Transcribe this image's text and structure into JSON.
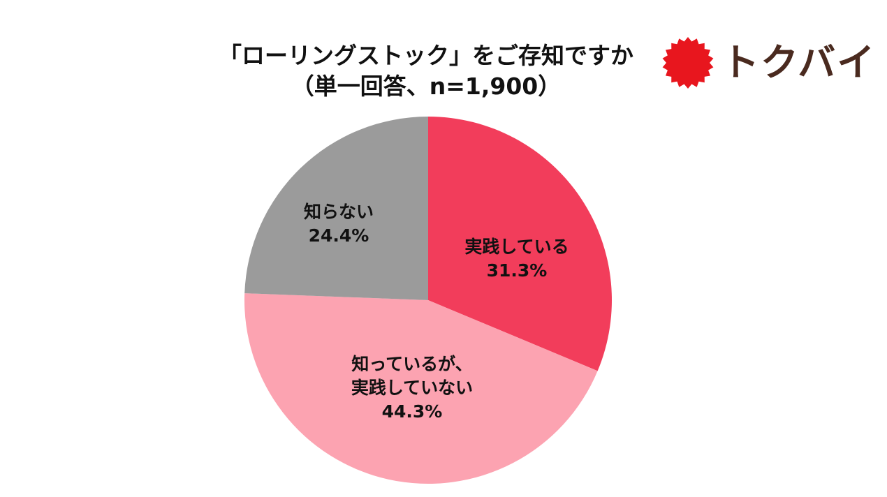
{
  "title": {
    "line1": "「ローリングストック」をご存知ですか",
    "line2": "（単一回答、n=1,900）"
  },
  "logo": {
    "text": "トクバイ",
    "badge_color": "#e8161e",
    "text_color": "#4a2a1f"
  },
  "chart_data": {
    "type": "pie",
    "title": "「ローリングストック」をご存知ですか（単一回答、n=1,900）",
    "unit": "%",
    "slices": [
      {
        "label_lines": [
          "実践している"
        ],
        "value": 31.3,
        "value_text": "31.3%",
        "color": "#f23d5b"
      },
      {
        "label_lines": [
          "知っているが、",
          "実践していない"
        ],
        "value": 44.3,
        "value_text": "44.3%",
        "color": "#fca3b1"
      },
      {
        "label_lines": [
          "知らない"
        ],
        "value": 24.4,
        "value_text": "24.4%",
        "color": "#9b9b9b"
      }
    ]
  }
}
